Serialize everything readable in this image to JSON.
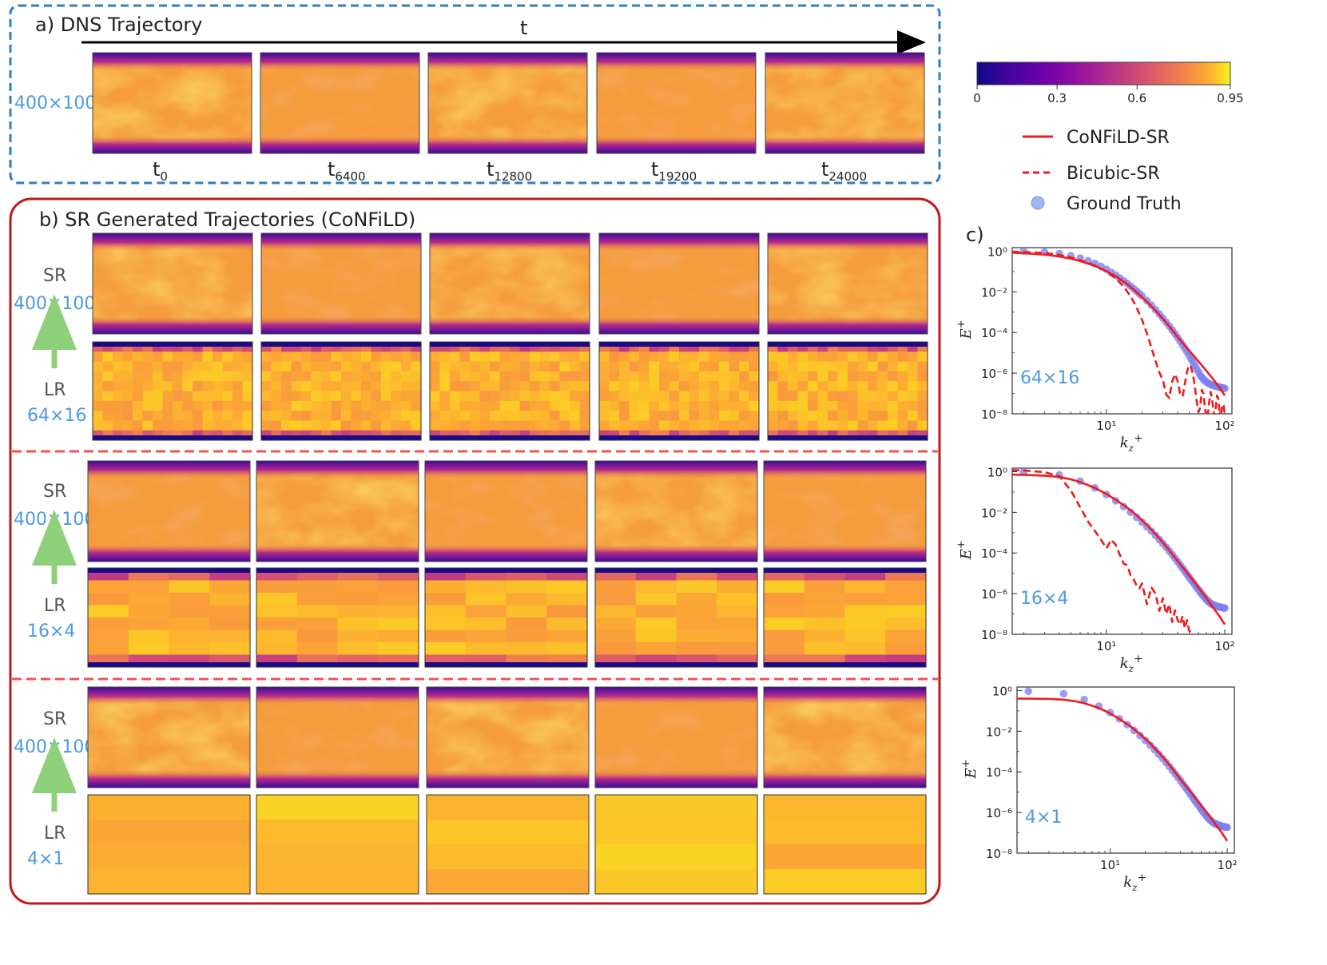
{
  "panel_a": {
    "title": "a) DNS Trajectory",
    "time_axis_label": "t",
    "resolution_label": "400×100",
    "time_labels": [
      {
        "base": "t",
        "sub": "0"
      },
      {
        "base": "t",
        "sub": "6400"
      },
      {
        "base": "t",
        "sub": "12800"
      },
      {
        "base": "t",
        "sub": "19200"
      },
      {
        "base": "t",
        "sub": "24000"
      }
    ]
  },
  "panel_b": {
    "title": "b) SR Generated Trajectories (CoNFiLD)",
    "groups": [
      {
        "sr_label": "SR",
        "sr_res": "400×100",
        "lr_label": "LR",
        "lr_res": "64×16",
        "lr_grid": [
          16,
          10
        ]
      },
      {
        "sr_label": "SR",
        "sr_res": "400×100",
        "lr_label": "LR",
        "lr_res": "16×4",
        "lr_grid": [
          4,
          8
        ]
      },
      {
        "sr_label": "SR",
        "sr_res": "400×100",
        "lr_label": "LR",
        "lr_res": "4×1",
        "lr_grid": [
          1,
          4
        ]
      }
    ]
  },
  "colorbar": {
    "ticks": [
      "0",
      "0.3",
      "0.6",
      "0.95"
    ],
    "range": [
      0,
      0.95
    ],
    "colormap": "plasma"
  },
  "legend": {
    "items": [
      {
        "label": "CoNFiLD-SR",
        "style": "solid",
        "color": "#ee1c1c"
      },
      {
        "label": "Bicubic-SR",
        "style": "dashed",
        "color": "#ee1c1c"
      },
      {
        "label": "Ground Truth",
        "style": "marker",
        "color": "#7b7bea"
      }
    ]
  },
  "panel_c": {
    "title": "c)"
  },
  "chart_data": [
    {
      "type": "line",
      "annotation": "64×16",
      "xlabel": "k_z^+",
      "ylabel": "E^+",
      "xscale": "log",
      "yscale": "log",
      "xlim": [
        1.6,
        115
      ],
      "ylim": [
        1e-08,
        1.5
      ],
      "xticks": [
        "10¹",
        "10²"
      ],
      "yticks": [
        "10⁰",
        "10⁻²",
        "10⁻⁴",
        "10⁻⁶",
        "10⁻⁸"
      ],
      "series": [
        {
          "name": "Ground Truth",
          "style": "marker",
          "x": [
            2,
            3,
            4,
            5,
            6,
            7,
            8,
            9,
            10,
            11,
            12,
            13,
            14,
            15,
            16,
            17,
            18,
            19,
            20,
            22,
            24,
            26,
            28,
            30,
            32,
            34,
            36,
            38,
            40,
            42,
            44,
            46,
            48,
            50,
            52,
            54,
            56,
            58,
            60,
            62,
            64,
            66,
            68,
            70,
            72,
            74,
            76,
            78,
            80,
            82,
            84,
            86,
            88,
            90,
            92,
            94,
            96,
            98,
            100
          ],
          "y": [
            1.02,
            0.91,
            0.76,
            0.6,
            0.46,
            0.34,
            0.25,
            0.18,
            0.13,
            0.09,
            0.066,
            0.048,
            0.035,
            0.026,
            0.019,
            0.0143,
            0.0108,
            0.0082,
            0.0063,
            0.0037,
            0.0022,
            0.00133,
            0.00082,
            0.00051,
            0.00032,
            0.000205,
            0.000132,
            8.6e-05,
            5.6e-05,
            3.7e-05,
            2.45e-05,
            1.63e-05,
            1.09e-05,
            7.4e-06,
            5e-06,
            3.4e-06,
            2.35e-06,
            1.62e-06,
            1.13e-06,
            8e-07,
            6.2e-07,
            5e-07,
            4.2e-07,
            3.7e-07,
            3.3e-07,
            3e-07,
            2.8e-07,
            2.65e-07,
            2.5e-07,
            2.4e-07,
            2.3e-07,
            2.22e-07,
            2.14e-07,
            2.07e-07,
            2e-07,
            1.94e-07,
            1.88e-07,
            1.83e-07,
            1.8e-07
          ]
        },
        {
          "name": "CoNFiLD-SR",
          "style": "solid",
          "x": [
            1.6,
            2,
            3,
            4,
            5,
            6,
            8,
            10,
            12,
            15,
            18,
            22,
            27,
            33,
            40,
            50,
            60,
            70,
            80,
            90,
            100
          ],
          "y": [
            0.85,
            0.8,
            0.68,
            0.55,
            0.43,
            0.33,
            0.19,
            0.105,
            0.058,
            0.024,
            0.0095,
            0.0033,
            0.00095,
            0.00025,
            6e-05,
            1.3e-05,
            3.8e-06,
            1.3e-06,
            5e-07,
            2e-07,
            8e-08
          ]
        },
        {
          "name": "Bicubic-SR",
          "style": "dashed",
          "x": [
            1.6,
            2,
            3,
            4,
            5,
            6,
            8,
            10,
            12,
            14,
            16,
            18,
            20,
            22,
            24,
            26,
            28,
            30,
            32,
            34,
            36,
            38,
            40,
            42,
            44,
            46,
            48,
            50,
            52,
            54,
            56,
            58,
            60,
            62,
            64,
            66,
            68,
            70,
            72,
            74,
            76,
            78,
            80,
            82,
            84,
            86,
            88,
            90,
            92,
            94,
            96,
            98,
            100
          ],
          "y": [
            0.95,
            0.92,
            0.82,
            0.66,
            0.5,
            0.37,
            0.2,
            0.1,
            0.045,
            0.018,
            0.0062,
            0.0017,
            0.00042,
            9e-05,
            1.8e-05,
            4e-06,
            1.1e-06,
            4.5e-07,
            9e-08,
            6e-08,
            4e-07,
            9e-07,
            4e-07,
            1e-07,
            7e-08,
            3e-07,
            1.2e-06,
            2.5e-06,
            2e-06,
            8e-07,
            2e-07,
            4e-08,
            1.2e-08,
            2e-08,
            1.5e-07,
            1e-07,
            2e-08,
            6e-09,
            1e-08,
            4e-08,
            1.2e-07,
            6e-08,
            1.5e-08,
            8e-09,
            2e-08,
            8e-08,
            6e-08,
            1.6e-08,
            5e-09,
            1.5e-08,
            3e-08,
            2.5e-08,
            8e-09
          ]
        }
      ]
    },
    {
      "type": "line",
      "annotation": "16×4",
      "xlabel": "k_z^+",
      "ylabel": "E^+",
      "xscale": "log",
      "yscale": "log",
      "xlim": [
        1.6,
        115
      ],
      "ylim": [
        1e-08,
        1.5
      ],
      "xticks": [
        "10¹",
        "10²"
      ],
      "yticks": [
        "10⁰",
        "10⁻²",
        "10⁻⁴",
        "10⁻⁶",
        "10⁻⁸"
      ],
      "series": [
        {
          "name": "Ground Truth",
          "style": "marker",
          "x": [
            2,
            4,
            6,
            8,
            10,
            12,
            14,
            16,
            18,
            20,
            22,
            24,
            26,
            28,
            30,
            32,
            34,
            36,
            38,
            40,
            42,
            44,
            46,
            48,
            50,
            52,
            54,
            56,
            58,
            60,
            62,
            64,
            66,
            68,
            70,
            72,
            74,
            76,
            78,
            80,
            82,
            84,
            86,
            88,
            90,
            92,
            94,
            96,
            98,
            100
          ],
          "y": [
            1,
            0.7,
            0.34,
            0.16,
            0.075,
            0.037,
            0.019,
            0.0102,
            0.0057,
            0.0033,
            0.00195,
            0.00118,
            0.00073,
            0.00046,
            0.000295,
            0.00019,
            0.000124,
            8.2e-05,
            5.5e-05,
            3.7e-05,
            2.55e-05,
            1.78e-05,
            1.25e-05,
            8.9e-06,
            6.4e-06,
            4.7e-06,
            3.5e-06,
            2.65e-06,
            2e-06,
            1.55e-06,
            1.2e-06,
            9.5e-07,
            7.6e-07,
            6.2e-07,
            5.1e-07,
            4.3e-07,
            3.7e-07,
            3.3e-07,
            3e-07,
            2.8e-07,
            2.65e-07,
            2.5e-07,
            2.4e-07,
            2.3e-07,
            2.2e-07,
            2.15e-07,
            2.1e-07,
            2.05e-07,
            2e-07,
            1.95e-07
          ]
        },
        {
          "name": "CoNFiLD-SR",
          "style": "solid",
          "x": [
            1.6,
            2,
            3,
            4,
            5,
            6,
            8,
            10,
            12,
            15,
            18,
            22,
            27,
            33,
            40,
            50,
            60,
            70,
            80,
            90,
            100
          ],
          "y": [
            0.72,
            0.7,
            0.64,
            0.55,
            0.42,
            0.31,
            0.16,
            0.08,
            0.041,
            0.017,
            0.0071,
            0.0024,
            0.00068,
            0.00017,
            4e-05,
            8e-06,
            2e-06,
            6e-07,
            2e-07,
            8e-08,
            3e-08
          ]
        },
        {
          "name": "Bicubic-SR",
          "style": "dashed",
          "x": [
            1.6,
            2,
            3,
            4,
            5,
            6,
            7,
            8,
            9,
            10,
            11,
            12,
            13,
            14,
            15,
            16,
            17,
            18,
            19,
            20,
            22,
            24,
            26,
            28,
            30,
            32,
            34,
            36,
            38,
            40,
            42,
            44,
            46,
            48,
            50,
            55,
            60
          ],
          "y": [
            1.2,
            1.15,
            0.95,
            0.6,
            0.12,
            0.018,
            0.0035,
            0.0012,
            0.00045,
            0.00017,
            0.00045,
            0.00025,
            8e-05,
            3e-05,
            2.5e-05,
            8e-06,
            5e-06,
            2.5e-06,
            1.8e-06,
            3.2e-06,
            3e-07,
            2e-06,
            1e-06,
            1.4e-07,
            6e-07,
            1e-07,
            3e-07,
            4e-08,
            1.5e-07,
            5e-08,
            3e-08,
            8e-08,
            2e-08,
            5e-08,
            1.5e-08,
            9e-09,
            5e-09
          ]
        }
      ]
    },
    {
      "type": "line",
      "annotation": "4×1",
      "xlabel": "k_z^+",
      "ylabel": "E^+",
      "xscale": "log",
      "yscale": "log",
      "xlim": [
        1.6,
        115
      ],
      "ylim": [
        1e-08,
        1.5
      ],
      "xticks": [
        "10¹",
        "10²"
      ],
      "yticks": [
        "10⁰",
        "10⁻²",
        "10⁻⁴",
        "10⁻⁶",
        "10⁻⁸"
      ],
      "series": [
        {
          "name": "Ground Truth",
          "style": "marker",
          "x": [
            2,
            4,
            6,
            8,
            10,
            12,
            14,
            16,
            18,
            20,
            22,
            24,
            26,
            28,
            30,
            32,
            34,
            36,
            38,
            40,
            42,
            44,
            46,
            48,
            50,
            52,
            54,
            56,
            58,
            60,
            62,
            64,
            66,
            68,
            70,
            72,
            74,
            76,
            78,
            80,
            82,
            84,
            86,
            88,
            90,
            92,
            94,
            96,
            98,
            100
          ],
          "y": [
            0.92,
            0.7,
            0.36,
            0.17,
            0.082,
            0.041,
            0.021,
            0.011,
            0.0061,
            0.0035,
            0.00205,
            0.00122,
            0.00074,
            0.00046,
            0.00029,
            0.000185,
            0.00012,
            7.9e-05,
            5.3e-05,
            3.6e-05,
            2.45e-05,
            1.7e-05,
            1.2e-05,
            8.5e-06,
            6.1e-06,
            4.5e-06,
            3.3e-06,
            2.5e-06,
            1.9e-06,
            1.45e-06,
            1.12e-06,
            8.9e-07,
            7.1e-07,
            5.8e-07,
            4.8e-07,
            4.1e-07,
            3.6e-07,
            3.2e-07,
            2.9e-07,
            2.7e-07,
            2.55e-07,
            2.4e-07,
            2.3e-07,
            2.2e-07,
            2.12e-07,
            2.06e-07,
            2e-07,
            1.95e-07,
            1.9e-07,
            1.85e-07
          ]
        },
        {
          "name": "CoNFiLD-SR",
          "style": "solid",
          "x": [
            1.6,
            2,
            3,
            4,
            5,
            6,
            8,
            10,
            12,
            15,
            18,
            22,
            27,
            33,
            40,
            50,
            60,
            70,
            80,
            90,
            100
          ],
          "y": [
            0.4,
            0.4,
            0.39,
            0.36,
            0.3,
            0.24,
            0.14,
            0.075,
            0.04,
            0.017,
            0.0072,
            0.0025,
            0.00072,
            0.00018,
            4.2e-05,
            8.5e-06,
            2.2e-06,
            7e-07,
            2.5e-07,
            1e-07,
            4e-08
          ]
        }
      ]
    }
  ]
}
